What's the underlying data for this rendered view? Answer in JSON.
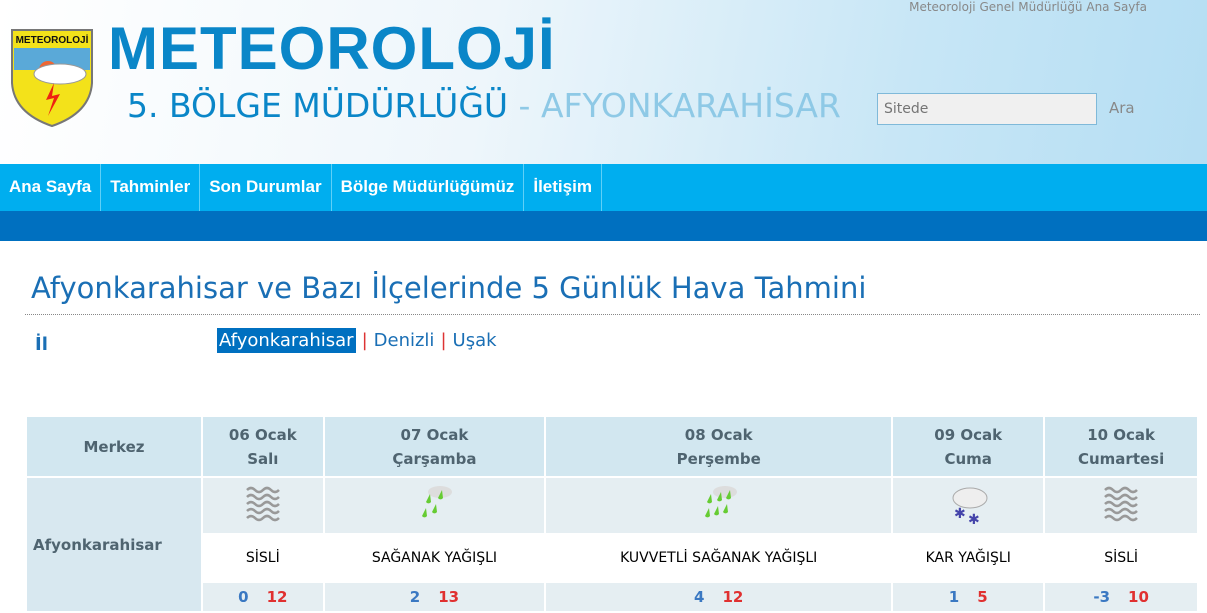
{
  "header": {
    "logo_text": "METEOROLOJİ",
    "brand_title": "METEOROLOJİ",
    "brand_subtitle": "5. BÖLGE MÜDÜRLÜĞÜ",
    "brand_sep": " - ",
    "brand_city": "AFYONKARAHİSAR",
    "top_link": "Meteoroloji Genel Müdürlüğü Ana Sayfa",
    "search_placeholder": "Sitede",
    "search_button": "Ara"
  },
  "nav": [
    "Ana Sayfa",
    "Tahminler",
    "Son Durumlar",
    "Bölge Müdürlüğümüz",
    "İletişim"
  ],
  "page_title": "Afyonkarahisar ve Bazı İlçelerinde 5 Günlük Hava Tahmini",
  "il_label": "İl",
  "provinces": {
    "selected": "Afyonkarahisar",
    "others": [
      "Denizli",
      "Uşak"
    ]
  },
  "table": {
    "corner": "Merkez",
    "city": "Afyonkarahisar",
    "days": [
      {
        "date": "06 Ocak",
        "day": "Salı",
        "icon": "fog-icon",
        "cond": "SİSLİ",
        "min": "0",
        "max": "12"
      },
      {
        "date": "07 Ocak",
        "day": "Çarşamba",
        "icon": "shower-rain-icon",
        "cond": "SAĞANAK YAĞIŞLI",
        "min": "2",
        "max": "13"
      },
      {
        "date": "08 Ocak",
        "day": "Perşembe",
        "icon": "heavy-shower-icon",
        "cond": "KUVVETLİ SAĞANAK YAĞIŞLI",
        "min": "4",
        "max": "12"
      },
      {
        "date": "09 Ocak",
        "day": "Cuma",
        "icon": "snow-icon",
        "cond": "KAR YAĞIŞLI",
        "min": "1",
        "max": "5"
      },
      {
        "date": "10 Ocak",
        "day": "Cumartesi",
        "icon": "fog-icon",
        "cond": "SİSLİ",
        "min": "-3",
        "max": "10"
      }
    ]
  },
  "colors": {
    "nav": "#00aeef",
    "band": "#0070c0",
    "title": "#1a6fb5",
    "min": "#3a78c2",
    "max": "#e03030"
  }
}
